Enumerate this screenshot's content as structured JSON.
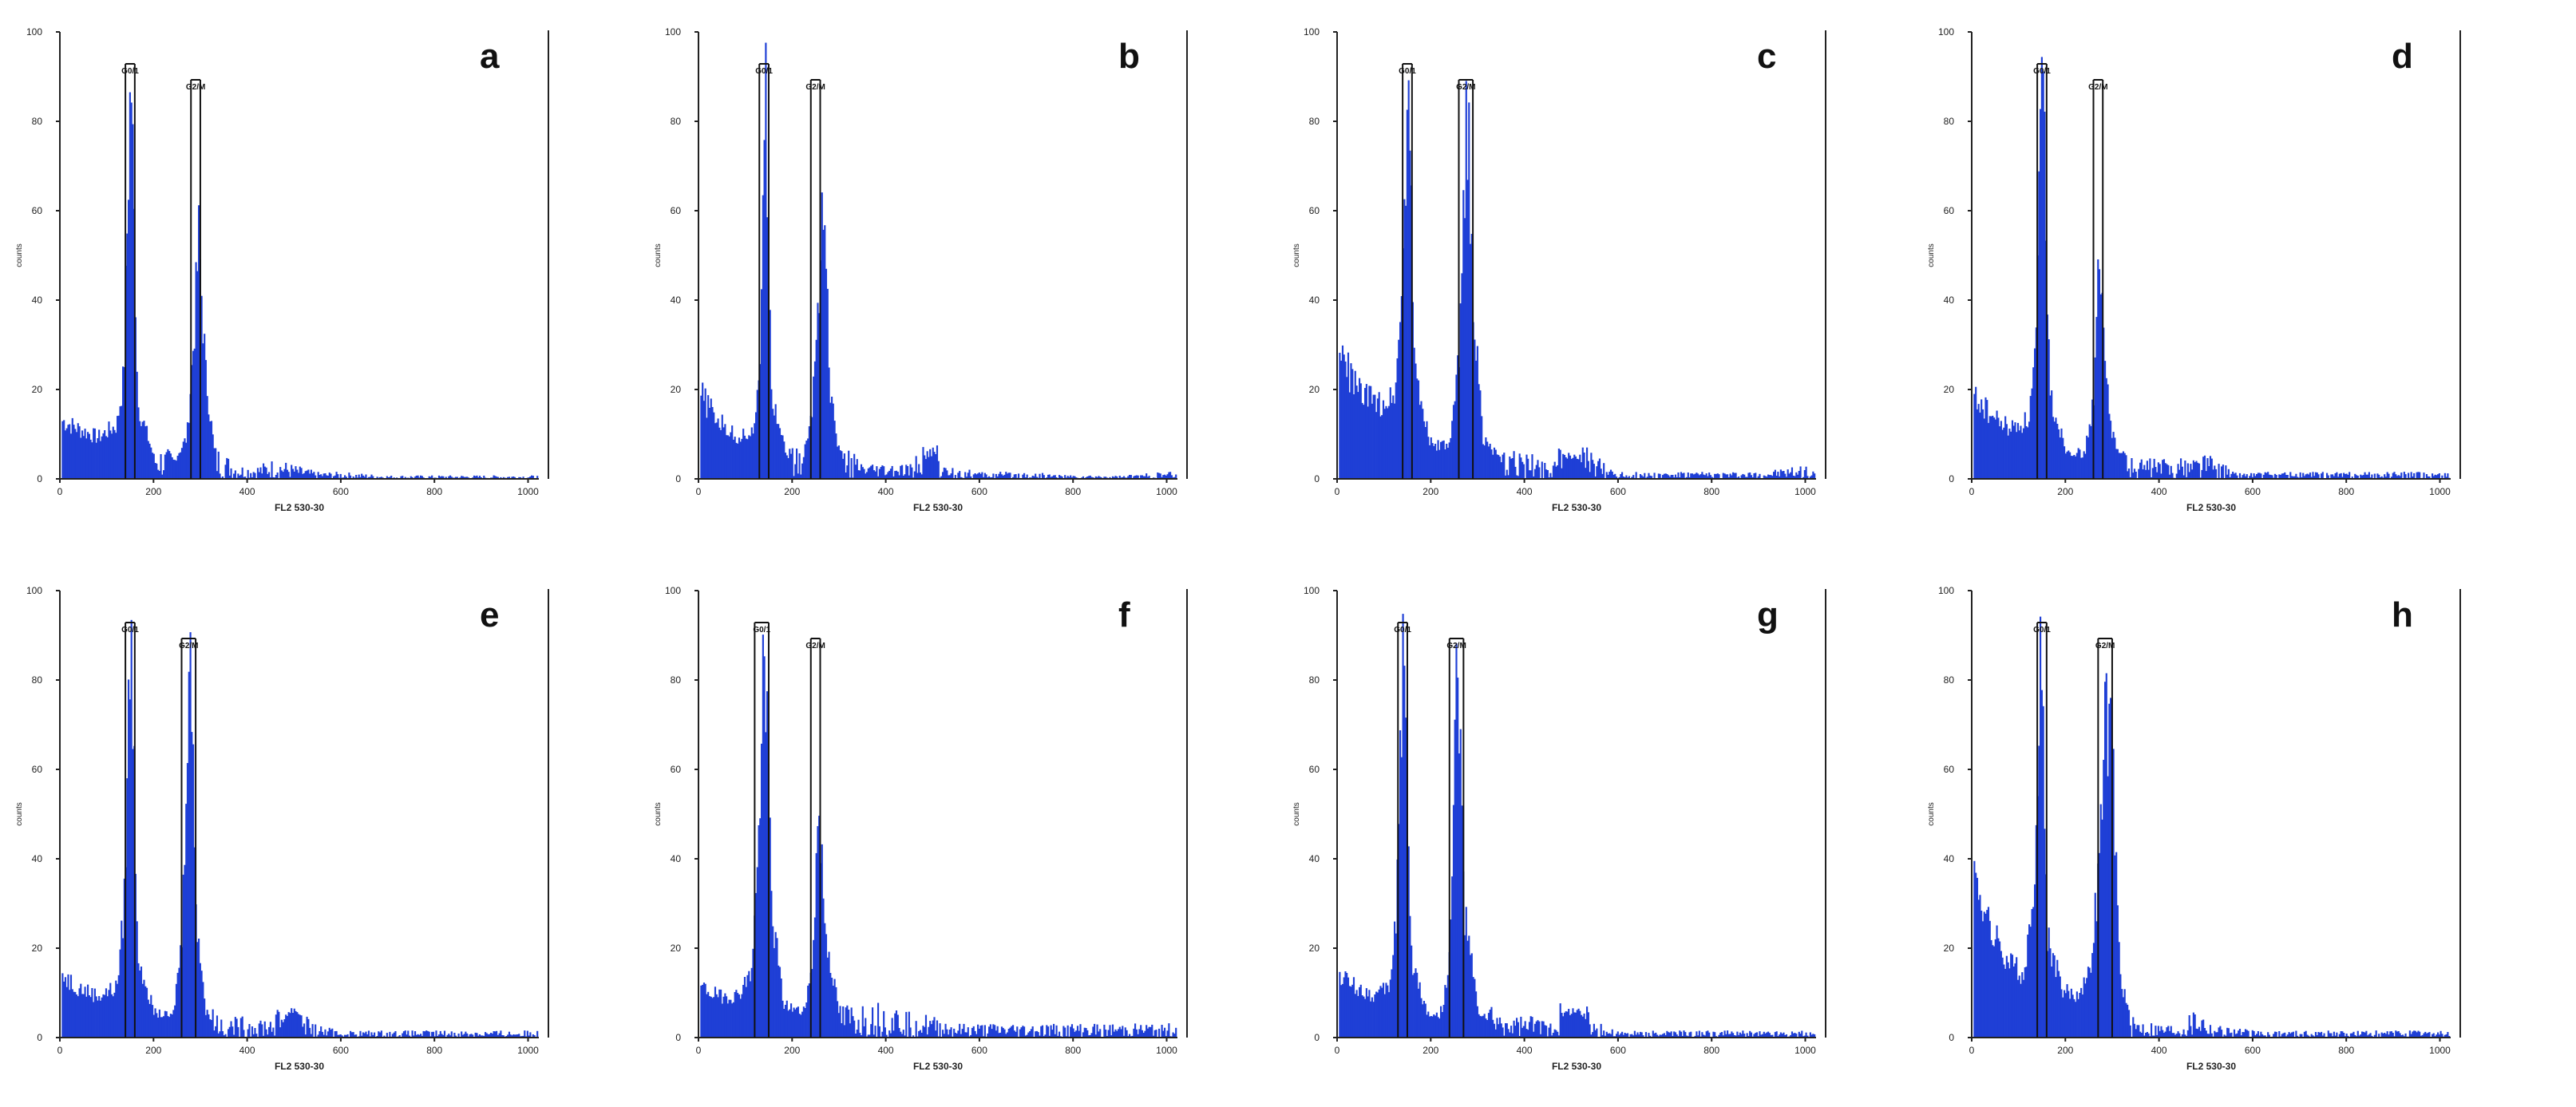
{
  "figure": {
    "background": "#ffffff",
    "bar_color": "#1f3fd6",
    "axis_color": "#222222"
  },
  "chart_data": [
    {
      "type": "bar",
      "panel_label": "a",
      "xlabel": "FL2 530-30",
      "ylabel": "counts",
      "xlim": [
        0,
        1023
      ],
      "ylim": [
        0,
        100
      ],
      "xticks": [
        "0",
        "200",
        "400",
        "600",
        "800",
        "1000"
      ],
      "yticks": [
        "0",
        "20",
        "40",
        "60",
        "80",
        "100"
      ],
      "gate_markers": [
        {
          "label": "G0/1",
          "x": [
            140,
            160
          ]
        },
        {
          "label": "G2/M",
          "x": [
            280,
            300
          ]
        }
      ],
      "series": [
        {
          "values": [
            [
              5,
              14
            ],
            [
              40,
              12
            ],
            [
              80,
              10
            ],
            [
              120,
              13
            ],
            [
              135,
              25
            ],
            [
              150,
              100
            ],
            [
              165,
              18
            ],
            [
              200,
              5
            ],
            [
              240,
              4
            ],
            [
              270,
              10
            ],
            [
              285,
              35
            ],
            [
              295,
              58
            ],
            [
              310,
              25
            ],
            [
              330,
              5
            ],
            [
              380,
              2
            ],
            [
              420,
              2
            ],
            [
              460,
              3
            ],
            [
              500,
              2
            ],
            [
              550,
              1
            ],
            [
              600,
              1
            ],
            [
              700,
              0.5
            ],
            [
              800,
              0.5
            ],
            [
              900,
              0.5
            ],
            [
              1000,
              0.5
            ]
          ]
        }
      ]
    },
    {
      "type": "bar",
      "panel_label": "b",
      "xlabel": "FL2 530-30",
      "ylabel": "counts",
      "xlim": [
        0,
        1023
      ],
      "ylim": [
        0,
        100
      ],
      "xticks": [
        "0",
        "200",
        "400",
        "600",
        "800",
        "1000"
      ],
      "yticks": [
        "0",
        "20",
        "40",
        "60",
        "80",
        "100"
      ],
      "gate_markers": [
        {
          "label": "G0/1",
          "x": [
            130,
            150
          ]
        },
        {
          "label": "G2/M",
          "x": [
            240,
            260
          ]
        }
      ],
      "series": [
        {
          "values": [
            [
              5,
              20
            ],
            [
              40,
              14
            ],
            [
              80,
              10
            ],
            [
              120,
              12
            ],
            [
              130,
              30
            ],
            [
              140,
              100
            ],
            [
              155,
              20
            ],
            [
              190,
              5
            ],
            [
              220,
              4
            ],
            [
              240,
              15
            ],
            [
              255,
              45
            ],
            [
              265,
              72
            ],
            [
              280,
              20
            ],
            [
              300,
              6
            ],
            [
              350,
              2
            ],
            [
              400,
              2
            ],
            [
              450,
              2
            ],
            [
              500,
              7
            ],
            [
              520,
              2
            ],
            [
              600,
              1
            ],
            [
              700,
              1
            ],
            [
              800,
              0.5
            ],
            [
              900,
              0.5
            ],
            [
              1000,
              1
            ]
          ]
        }
      ]
    },
    {
      "type": "bar",
      "panel_label": "c",
      "xlabel": "FL2 530-30",
      "ylabel": "counts",
      "xlim": [
        0,
        1023
      ],
      "ylim": [
        0,
        100
      ],
      "xticks": [
        "0",
        "200",
        "400",
        "600",
        "800",
        "1000"
      ],
      "yticks": [
        "0",
        "20",
        "40",
        "60",
        "80",
        "100"
      ],
      "gate_markers": [
        {
          "label": "G0/1",
          "x": [
            140,
            160
          ]
        },
        {
          "label": "G2/M",
          "x": [
            260,
            290
          ]
        }
      ],
      "series": [
        {
          "values": [
            [
              5,
              30
            ],
            [
              40,
              22
            ],
            [
              80,
              18
            ],
            [
              120,
              20
            ],
            [
              135,
              40
            ],
            [
              150,
              100
            ],
            [
              165,
              25
            ],
            [
              200,
              8
            ],
            [
              240,
              8
            ],
            [
              260,
              30
            ],
            [
              275,
              95
            ],
            [
              290,
              40
            ],
            [
              310,
              10
            ],
            [
              350,
              4
            ],
            [
              400,
              4
            ],
            [
              450,
              3
            ],
            [
              500,
              6
            ],
            [
              540,
              4
            ],
            [
              600,
              1
            ],
            [
              700,
              1
            ],
            [
              800,
              1
            ],
            [
              900,
              1
            ],
            [
              1000,
              2
            ]
          ]
        }
      ]
    },
    {
      "type": "bar",
      "panel_label": "d",
      "xlabel": "FL2 530-30",
      "ylabel": "counts",
      "xlim": [
        0,
        1023
      ],
      "ylim": [
        0,
        100
      ],
      "xticks": [
        "0",
        "200",
        "400",
        "600",
        "800",
        "1000"
      ],
      "yticks": [
        "0",
        "20",
        "40",
        "60",
        "80",
        "100"
      ],
      "gate_markers": [
        {
          "label": "G0/1",
          "x": [
            140,
            160
          ]
        },
        {
          "label": "G2/M",
          "x": [
            260,
            280
          ]
        }
      ],
      "series": [
        {
          "values": [
            [
              5,
              20
            ],
            [
              40,
              15
            ],
            [
              80,
              12
            ],
            [
              120,
              14
            ],
            [
              135,
              30
            ],
            [
              150,
              100
            ],
            [
              165,
              20
            ],
            [
              200,
              7
            ],
            [
              240,
              6
            ],
            [
              260,
              20
            ],
            [
              270,
              52
            ],
            [
              285,
              25
            ],
            [
              300,
              10
            ],
            [
              340,
              3
            ],
            [
              400,
              3
            ],
            [
              450,
              3
            ],
            [
              500,
              4
            ],
            [
              560,
              1
            ],
            [
              600,
              1
            ],
            [
              700,
              1
            ],
            [
              800,
              1
            ],
            [
              900,
              1
            ],
            [
              1000,
              1
            ]
          ]
        }
      ]
    },
    {
      "type": "bar",
      "panel_label": "e",
      "xlabel": "FL2 530-30",
      "ylabel": "counts",
      "xlim": [
        0,
        1023
      ],
      "ylim": [
        0,
        100
      ],
      "xticks": [
        "0",
        "200",
        "400",
        "600",
        "800",
        "1000"
      ],
      "yticks": [
        "0",
        "20",
        "40",
        "60",
        "80",
        "100"
      ],
      "gate_markers": [
        {
          "label": "G0/1",
          "x": [
            140,
            160
          ]
        },
        {
          "label": "G2/M",
          "x": [
            260,
            290
          ]
        }
      ],
      "series": [
        {
          "values": [
            [
              5,
              15
            ],
            [
              40,
              12
            ],
            [
              80,
              10
            ],
            [
              120,
              12
            ],
            [
              135,
              30
            ],
            [
              150,
              100
            ],
            [
              165,
              20
            ],
            [
              200,
              6
            ],
            [
              240,
              5
            ],
            [
              260,
              25
            ],
            [
              275,
              100
            ],
            [
              290,
              30
            ],
            [
              310,
              6
            ],
            [
              350,
              3
            ],
            [
              400,
              3
            ],
            [
              450,
              3
            ],
            [
              500,
              7
            ],
            [
              540,
              2
            ],
            [
              600,
              1
            ],
            [
              700,
              1
            ],
            [
              800,
              1
            ],
            [
              900,
              1
            ],
            [
              1000,
              1
            ]
          ]
        }
      ]
    },
    {
      "type": "bar",
      "panel_label": "f",
      "xlabel": "FL2 530-30",
      "ylabel": "counts",
      "xlim": [
        0,
        1023
      ],
      "ylim": [
        0,
        100
      ],
      "xticks": [
        "0",
        "200",
        "400",
        "600",
        "800",
        "1000"
      ],
      "yticks": [
        "0",
        "20",
        "40",
        "60",
        "80",
        "100"
      ],
      "gate_markers": [
        {
          "label": "G0/1",
          "x": [
            120,
            150
          ]
        },
        {
          "label": "G2/M",
          "x": [
            240,
            260
          ]
        }
      ],
      "series": [
        {
          "values": [
            [
              5,
              12
            ],
            [
              40,
              10
            ],
            [
              80,
              10
            ],
            [
              110,
              15
            ],
            [
              125,
              40
            ],
            [
              140,
              100
            ],
            [
              155,
              30
            ],
            [
              180,
              8
            ],
            [
              220,
              6
            ],
            [
              240,
              15
            ],
            [
              255,
              55
            ],
            [
              270,
              25
            ],
            [
              300,
              5
            ],
            [
              350,
              5
            ],
            [
              400,
              5
            ],
            [
              450,
              4
            ],
            [
              500,
              3
            ],
            [
              550,
              2
            ],
            [
              600,
              2
            ],
            [
              700,
              2
            ],
            [
              800,
              2
            ],
            [
              900,
              2
            ],
            [
              1000,
              2
            ]
          ]
        }
      ]
    },
    {
      "type": "bar",
      "panel_label": "g",
      "xlabel": "FL2 530-30",
      "ylabel": "counts",
      "xlim": [
        0,
        1023
      ],
      "ylim": [
        0,
        100
      ],
      "xticks": [
        "0",
        "200",
        "400",
        "600",
        "800",
        "1000"
      ],
      "yticks": [
        "0",
        "20",
        "40",
        "60",
        "80",
        "100"
      ],
      "gate_markers": [
        {
          "label": "G0/1",
          "x": [
            130,
            150
          ]
        },
        {
          "label": "G2/M",
          "x": [
            240,
            270
          ]
        }
      ],
      "series": [
        {
          "values": [
            [
              5,
              15
            ],
            [
              40,
              12
            ],
            [
              80,
              10
            ],
            [
              110,
              12
            ],
            [
              125,
              30
            ],
            [
              140,
              100
            ],
            [
              155,
              20
            ],
            [
              190,
              6
            ],
            [
              220,
              5
            ],
            [
              240,
              20
            ],
            [
              255,
              95
            ],
            [
              270,
              30
            ],
            [
              300,
              6
            ],
            [
              350,
              3
            ],
            [
              400,
              3
            ],
            [
              450,
              3
            ],
            [
              500,
              7
            ],
            [
              530,
              5
            ],
            [
              560,
              2
            ],
            [
              600,
              1
            ],
            [
              700,
              1
            ],
            [
              800,
              1
            ],
            [
              900,
              1
            ],
            [
              1000,
              1
            ]
          ]
        }
      ]
    },
    {
      "type": "bar",
      "panel_label": "h",
      "xlabel": "FL2 530-30",
      "ylabel": "counts",
      "xlim": [
        0,
        1023
      ],
      "ylim": [
        0,
        100
      ],
      "xticks": [
        "0",
        "200",
        "400",
        "600",
        "800",
        "1000"
      ],
      "yticks": [
        "0",
        "20",
        "40",
        "60",
        "80",
        "100"
      ],
      "gate_markers": [
        {
          "label": "G0/1",
          "x": [
            140,
            160
          ]
        },
        {
          "label": "G2/M",
          "x": [
            270,
            300
          ]
        }
      ],
      "series": [
        {
          "values": [
            [
              5,
              40
            ],
            [
              40,
              25
            ],
            [
              80,
              18
            ],
            [
              110,
              15
            ],
            [
              130,
              30
            ],
            [
              145,
              100
            ],
            [
              160,
              25
            ],
            [
              190,
              12
            ],
            [
              220,
              10
            ],
            [
              250,
              15
            ],
            [
              270,
              40
            ],
            [
              285,
              80
            ],
            [
              300,
              65
            ],
            [
              315,
              15
            ],
            [
              340,
              3
            ],
            [
              400,
              2
            ],
            [
              450,
              2
            ],
            [
              480,
              5
            ],
            [
              510,
              2
            ],
            [
              600,
              1
            ],
            [
              700,
              1
            ],
            [
              800,
              1
            ],
            [
              900,
              1
            ],
            [
              1000,
              1
            ]
          ]
        }
      ]
    }
  ]
}
